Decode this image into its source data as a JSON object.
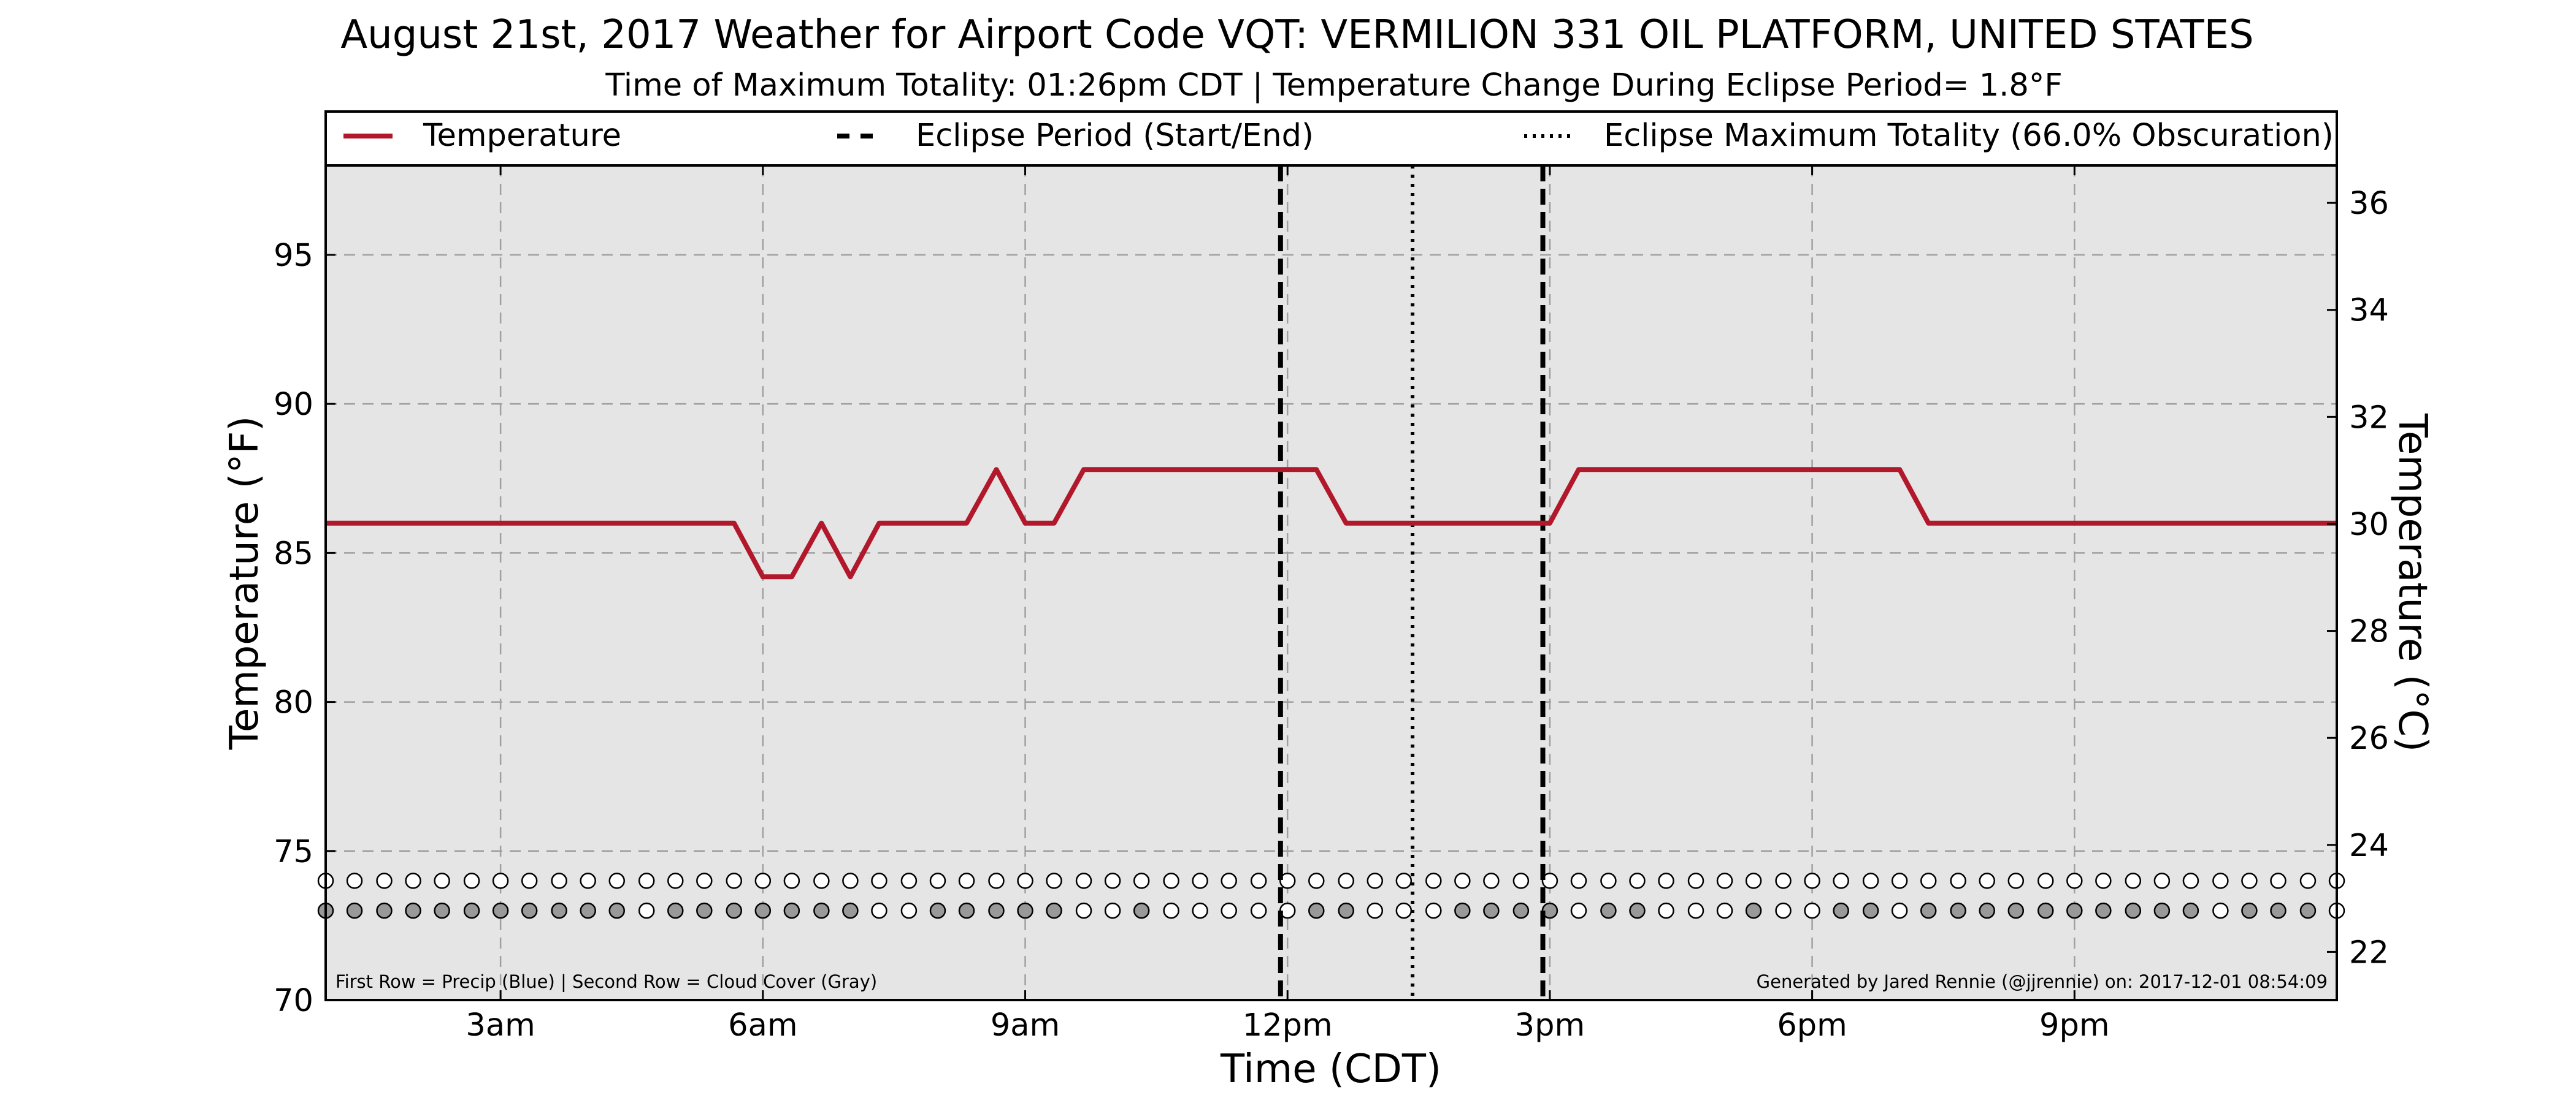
{
  "chart_data": {
    "type": "line",
    "title": "August 21st, 2017 Weather for Airport Code VQT: VERMILION 331 OIL PLATFORM, UNITED STATES",
    "subtitle": "Time of Maximum Totality: 01:26pm CDT | Temperature Change During Eclipse Period= 1.8°F",
    "xlabel": "Time (CDT)",
    "ylabel": "Temperature (°F)",
    "y2label": "Temperature (°C)",
    "xlim": [
      1.0,
      24.0
    ],
    "ylim": [
      70,
      98
    ],
    "y2lim": [
      21.1,
      36.7
    ],
    "xticks": [
      {
        "x": 3,
        "label": "3am"
      },
      {
        "x": 6,
        "label": "6am"
      },
      {
        "x": 9,
        "label": "9am"
      },
      {
        "x": 12,
        "label": "12pm"
      },
      {
        "x": 15,
        "label": "3pm"
      },
      {
        "x": 18,
        "label": "6pm"
      },
      {
        "x": 21,
        "label": "9pm"
      }
    ],
    "yticks": [
      70,
      75,
      80,
      85,
      90,
      95
    ],
    "y2ticks": [
      22,
      24,
      26,
      28,
      30,
      32,
      34,
      36
    ],
    "grid": true,
    "legend": {
      "placement": "top",
      "entries": [
        {
          "label": "Temperature",
          "style": "solid",
          "color": "#b2182b"
        },
        {
          "label": "Eclipse Period (Start/End)",
          "style": "dashed",
          "color": "#000000"
        },
        {
          "label": "Eclipse Maximum Totality (66.0% Obscuration)",
          "style": "dotted",
          "color": "#000000"
        }
      ]
    },
    "series": [
      {
        "name": "Temperature",
        "color": "#b2182b",
        "x": [
          1.0,
          1.33,
          1.67,
          2.0,
          2.33,
          2.67,
          3.0,
          3.33,
          3.67,
          4.0,
          4.33,
          4.67,
          5.0,
          5.33,
          5.67,
          6.0,
          6.33,
          6.67,
          7.0,
          7.33,
          7.67,
          8.0,
          8.33,
          8.67,
          9.0,
          9.33,
          9.67,
          10.0,
          10.33,
          10.67,
          11.0,
          11.33,
          11.67,
          12.0,
          12.33,
          12.67,
          13.0,
          13.33,
          13.67,
          14.0,
          14.33,
          14.67,
          15.0,
          15.33,
          15.67,
          16.0,
          16.33,
          16.67,
          17.0,
          17.33,
          17.67,
          18.0,
          18.33,
          18.67,
          19.0,
          19.33,
          19.67,
          20.0,
          20.33,
          20.67,
          21.0,
          21.33,
          21.67,
          22.0,
          22.33,
          22.67,
          23.0,
          23.33,
          23.67,
          24.0
        ],
        "values": [
          86.0,
          86.0,
          86.0,
          86.0,
          86.0,
          86.0,
          86.0,
          86.0,
          86.0,
          86.0,
          86.0,
          86.0,
          86.0,
          86.0,
          86.0,
          84.2,
          84.2,
          86.0,
          84.2,
          86.0,
          86.0,
          86.0,
          86.0,
          87.8,
          86.0,
          86.0,
          87.8,
          87.8,
          87.8,
          87.8,
          87.8,
          87.8,
          87.8,
          87.8,
          87.8,
          86.0,
          86.0,
          86.0,
          86.0,
          86.0,
          86.0,
          86.0,
          86.0,
          87.8,
          87.8,
          87.8,
          87.8,
          87.8,
          87.8,
          87.8,
          87.8,
          87.8,
          87.8,
          87.8,
          87.8,
          86.0,
          86.0,
          86.0,
          86.0,
          86.0,
          86.0,
          86.0,
          86.0,
          86.0,
          86.0,
          86.0,
          86.0,
          86.0,
          86.0,
          86.0
        ]
      }
    ],
    "eclipse_lines": [
      {
        "x": 11.92,
        "style": "dashed",
        "label": "Eclipse Period (Start/End)"
      },
      {
        "x": 13.43,
        "style": "dotted",
        "label": "Eclipse Maximum Totality"
      },
      {
        "x": 14.92,
        "style": "dashed",
        "label": "Eclipse Period (Start/End)"
      }
    ],
    "marker_rows": {
      "precip_y": 74,
      "cloud_y": 73,
      "x": [
        1.0,
        1.33,
        1.67,
        2.0,
        2.33,
        2.67,
        3.0,
        3.33,
        3.67,
        4.0,
        4.33,
        4.67,
        5.0,
        5.33,
        5.67,
        6.0,
        6.33,
        6.67,
        7.0,
        7.33,
        7.67,
        8.0,
        8.33,
        8.67,
        9.0,
        9.33,
        9.67,
        10.0,
        10.33,
        10.67,
        11.0,
        11.33,
        11.67,
        12.0,
        12.33,
        12.67,
        13.0,
        13.33,
        13.67,
        14.0,
        14.33,
        14.67,
        15.0,
        15.33,
        15.67,
        16.0,
        16.33,
        16.67,
        17.0,
        17.33,
        17.67,
        18.0,
        18.33,
        18.67,
        19.0,
        19.33,
        19.67,
        20.0,
        20.33,
        20.67,
        21.0,
        21.33,
        21.67,
        22.0,
        22.33,
        22.67,
        23.0,
        23.33,
        23.67,
        24.0
      ],
      "precip": [
        0,
        0,
        0,
        0,
        0,
        0,
        0,
        0,
        0,
        0,
        0,
        0,
        0,
        0,
        0,
        0,
        0,
        0,
        0,
        0,
        0,
        0,
        0,
        0,
        0,
        0,
        0,
        0,
        0,
        0,
        0,
        0,
        0,
        0,
        0,
        0,
        0,
        0,
        0,
        0,
        0,
        0,
        0,
        0,
        0,
        0,
        0,
        0,
        0,
        0,
        0,
        0,
        0,
        0,
        0,
        0,
        0,
        0,
        0,
        0,
        0,
        0,
        0,
        0,
        0,
        0,
        0,
        0,
        0,
        0
      ],
      "cloud": [
        1,
        1,
        1,
        1,
        1,
        1,
        1,
        1,
        1,
        1,
        1,
        0,
        1,
        1,
        1,
        1,
        1,
        1,
        1,
        0,
        0,
        1,
        1,
        1,
        1,
        1,
        0,
        0,
        1,
        0,
        0,
        0,
        0,
        0,
        1,
        1,
        0,
        0,
        0,
        1,
        1,
        1,
        1,
        0,
        1,
        1,
        0,
        0,
        0,
        1,
        0,
        0,
        1,
        1,
        0,
        1,
        1,
        1,
        1,
        1,
        1,
        1,
        1,
        1,
        1,
        0,
        1,
        1,
        1,
        0
      ],
      "colors": {
        "precip": "#1f77b4",
        "cloud": "#999999",
        "empty": "#ffffff"
      }
    },
    "footnote_left": "First Row = Precip (Blue) | Second Row = Cloud Cover (Gray)",
    "footnote_right": "Generated by Jared Rennie (@jjrennie) on: 2017-12-01 08:54:09",
    "colors": {
      "background": "#e5e5e5",
      "temperature": "#b2182b",
      "grid": "#a0a0a0"
    }
  }
}
